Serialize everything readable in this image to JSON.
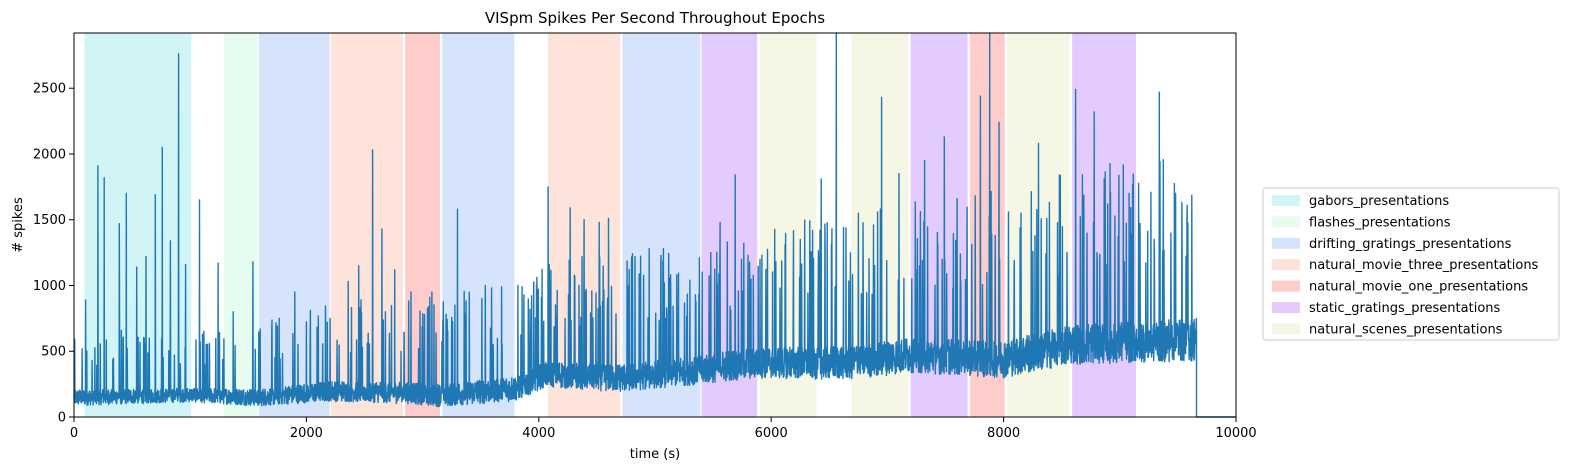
{
  "chart_data": {
    "type": "line",
    "title": "VISpm Spikes Per Second Throughout Epochs",
    "xlabel": "time (s)",
    "ylabel": "# spikes",
    "xlim": [
      0,
      10000
    ],
    "ylim": [
      0,
      2920
    ],
    "xticks": [
      0,
      2000,
      4000,
      6000,
      8000,
      10000
    ],
    "yticks": [
      0,
      500,
      1000,
      1500,
      2000,
      2500
    ],
    "grid": false,
    "legend_position": "right",
    "line_color": "#1f77b4",
    "epochs": [
      {
        "stimulus": "gabors_presentations",
        "start": 90,
        "end": 1010,
        "color": "#d1f5f7"
      },
      {
        "stimulus": "flashes_presentations",
        "start": 1290,
        "end": 1580,
        "color": "#e6fcef"
      },
      {
        "stimulus": "drifting_gratings_presentations",
        "start": 1590,
        "end": 2200,
        "color": "#d5e3fb"
      },
      {
        "stimulus": "natural_movie_three_presentations",
        "start": 2210,
        "end": 2830,
        "color": "#fde3da"
      },
      {
        "stimulus": "natural_movie_one_presentations",
        "start": 2850,
        "end": 3150,
        "color": "#ffcccc"
      },
      {
        "stimulus": "drifting_gratings_presentations",
        "start": 3170,
        "end": 3790,
        "color": "#d5e3fb"
      },
      {
        "stimulus": "natural_movie_three_presentations",
        "start": 4080,
        "end": 4700,
        "color": "#fde3da"
      },
      {
        "stimulus": "drifting_gratings_presentations",
        "start": 4720,
        "end": 5390,
        "color": "#d5e3fb"
      },
      {
        "stimulus": "static_gratings_presentations",
        "start": 5400,
        "end": 5880,
        "color": "#e3cbfd"
      },
      {
        "stimulus": "natural_scenes_presentations",
        "start": 5900,
        "end": 6390,
        "color": "#f5f6e4"
      },
      {
        "stimulus": "natural_scenes_presentations",
        "start": 6690,
        "end": 7180,
        "color": "#f5f6e4"
      },
      {
        "stimulus": "static_gratings_presentations",
        "start": 7200,
        "end": 7690,
        "color": "#e3cbfd"
      },
      {
        "stimulus": "natural_movie_one_presentations",
        "start": 7710,
        "end": 8010,
        "color": "#ffcccc"
      },
      {
        "stimulus": "natural_scenes_presentations",
        "start": 8030,
        "end": 8570,
        "color": "#f5f6e4"
      },
      {
        "stimulus": "static_gratings_presentations",
        "start": 8590,
        "end": 9140,
        "color": "#e3cbfd"
      }
    ],
    "legend": [
      {
        "label": "gabors_presentations",
        "color": "#d1f5f7"
      },
      {
        "label": "flashes_presentations",
        "color": "#e6fcef"
      },
      {
        "label": "drifting_gratings_presentations",
        "color": "#d5e3fb"
      },
      {
        "label": "natural_movie_three_presentations",
        "color": "#fde3da"
      },
      {
        "label": "natural_movie_one_presentations",
        "color": "#ffcccc"
      },
      {
        "label": "static_gratings_presentations",
        "color": "#e3cbfd"
      },
      {
        "label": "natural_scenes_presentations",
        "color": "#f5f6e4"
      }
    ],
    "series": [
      {
        "trace_end": 9660,
        "baseline": [
          [
            0,
            150
          ],
          [
            1000,
            170
          ],
          [
            1600,
            150
          ],
          [
            2200,
            200
          ],
          [
            2850,
            190
          ],
          [
            3150,
            170
          ],
          [
            3800,
            220
          ],
          [
            4050,
            330
          ],
          [
            4700,
            300
          ],
          [
            5400,
            370
          ],
          [
            5900,
            420
          ],
          [
            6690,
            420
          ],
          [
            7200,
            480
          ],
          [
            8000,
            450
          ],
          [
            8600,
            560
          ],
          [
            9140,
            580
          ],
          [
            9660,
            600
          ]
        ],
        "noise_amplitude": [
          [
            0,
            80
          ],
          [
            1000,
            70
          ],
          [
            2200,
            100
          ],
          [
            4050,
            130
          ],
          [
            5400,
            150
          ],
          [
            8600,
            200
          ],
          [
            9660,
            220
          ]
        ],
        "peaks": [
          {
            "x": 100,
            "y": 890
          },
          {
            "x": 205,
            "y": 1910
          },
          {
            "x": 260,
            "y": 1820
          },
          {
            "x": 390,
            "y": 1470
          },
          {
            "x": 450,
            "y": 1700
          },
          {
            "x": 540,
            "y": 1140
          },
          {
            "x": 620,
            "y": 1220
          },
          {
            "x": 700,
            "y": 1690
          },
          {
            "x": 760,
            "y": 2050
          },
          {
            "x": 830,
            "y": 1340
          },
          {
            "x": 900,
            "y": 2760
          },
          {
            "x": 960,
            "y": 1160
          },
          {
            "x": 1080,
            "y": 1650
          },
          {
            "x": 1240,
            "y": 1170
          },
          {
            "x": 1370,
            "y": 800
          },
          {
            "x": 1540,
            "y": 1180
          },
          {
            "x": 1900,
            "y": 950
          },
          {
            "x": 2180,
            "y": 720
          },
          {
            "x": 2360,
            "y": 1030
          },
          {
            "x": 2450,
            "y": 1150
          },
          {
            "x": 2570,
            "y": 2030
          },
          {
            "x": 2650,
            "y": 1430
          },
          {
            "x": 2760,
            "y": 1120
          },
          {
            "x": 2900,
            "y": 950
          },
          {
            "x": 3080,
            "y": 950
          },
          {
            "x": 3300,
            "y": 1580
          },
          {
            "x": 3540,
            "y": 1000
          },
          {
            "x": 3680,
            "y": 990
          },
          {
            "x": 4080,
            "y": 1750
          },
          {
            "x": 4270,
            "y": 1590
          },
          {
            "x": 4390,
            "y": 1500
          },
          {
            "x": 4520,
            "y": 1480
          },
          {
            "x": 4600,
            "y": 1510
          },
          {
            "x": 4800,
            "y": 1220
          },
          {
            "x": 4950,
            "y": 1280
          },
          {
            "x": 5080,
            "y": 1020
          },
          {
            "x": 5300,
            "y": 1040
          },
          {
            "x": 5480,
            "y": 1250
          },
          {
            "x": 5560,
            "y": 1480
          },
          {
            "x": 5690,
            "y": 1840
          },
          {
            "x": 5800,
            "y": 1230
          },
          {
            "x": 6040,
            "y": 1180
          },
          {
            "x": 6250,
            "y": 1350
          },
          {
            "x": 6430,
            "y": 1810
          },
          {
            "x": 6560,
            "y": 2920
          },
          {
            "x": 6750,
            "y": 1550
          },
          {
            "x": 6880,
            "y": 1460
          },
          {
            "x": 6950,
            "y": 2430
          },
          {
            "x": 7100,
            "y": 1850
          },
          {
            "x": 7320,
            "y": 1950
          },
          {
            "x": 7490,
            "y": 2130
          },
          {
            "x": 7600,
            "y": 1660
          },
          {
            "x": 7800,
            "y": 2440
          },
          {
            "x": 7880,
            "y": 2920
          },
          {
            "x": 7960,
            "y": 2240
          },
          {
            "x": 8150,
            "y": 1550
          },
          {
            "x": 8300,
            "y": 2080
          },
          {
            "x": 8480,
            "y": 1840
          },
          {
            "x": 8620,
            "y": 2490
          },
          {
            "x": 8780,
            "y": 2320
          },
          {
            "x": 8920,
            "y": 1710
          },
          {
            "x": 9080,
            "y": 1700
          },
          {
            "x": 9340,
            "y": 2470
          },
          {
            "x": 9480,
            "y": 1700
          },
          {
            "x": 9580,
            "y": 1610
          }
        ]
      }
    ]
  }
}
